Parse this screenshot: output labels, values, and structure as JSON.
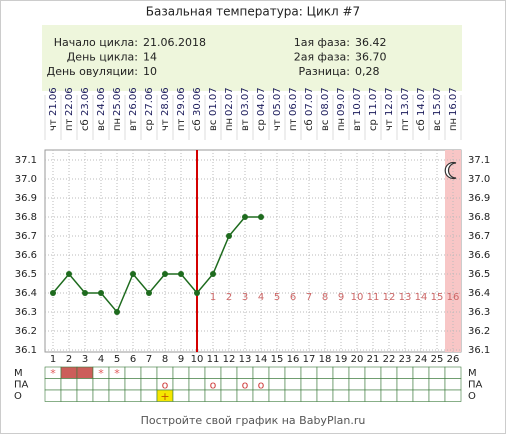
{
  "chart_data": {
    "type": "line",
    "title": "Базальная температура: Цикл #7",
    "info_left": [
      {
        "label": "Начало цикла:",
        "value": "21.06.2018"
      },
      {
        "label": "День цикла:",
        "value": "14"
      },
      {
        "label": "День овуляции:",
        "value": "10"
      }
    ],
    "info_right": [
      {
        "label": "1ая фаза:",
        "value": "36.42"
      },
      {
        "label": "2ая фаза:",
        "value": "36.70"
      },
      {
        "label": "Разница:",
        "value": "0,28"
      }
    ],
    "categories": [
      1,
      2,
      3,
      4,
      5,
      6,
      7,
      8,
      9,
      10,
      11,
      12,
      13,
      14,
      15,
      16,
      17,
      18,
      19,
      20,
      21,
      22,
      23,
      24,
      25,
      26
    ],
    "dates": [
      "21.06",
      "22.06",
      "23.06",
      "24.06",
      "25.06",
      "26.06",
      "27.06",
      "28.06",
      "29.06",
      "30.06",
      "01.07",
      "02.07",
      "03.07",
      "04.07",
      "05.07",
      "06.07",
      "07.07",
      "08.07",
      "09.07",
      "10.07",
      "11.07",
      "12.07",
      "13.07",
      "14.07",
      "15.07",
      "16.07"
    ],
    "weekdays": [
      "чт",
      "пт",
      "сб",
      "вс",
      "пн",
      "вт",
      "ср",
      "чт",
      "пт",
      "сб",
      "вс",
      "пн",
      "вт",
      "ср",
      "чт",
      "пт",
      "сб",
      "вс",
      "пн",
      "вт",
      "ср",
      "чт",
      "пт",
      "сб",
      "вс",
      "пн"
    ],
    "values": [
      36.4,
      36.5,
      36.4,
      36.4,
      36.3,
      36.5,
      36.4,
      36.5,
      36.5,
      36.4,
      36.5,
      36.7,
      36.8,
      36.8,
      null,
      null,
      null,
      null,
      null,
      null,
      null,
      null,
      null,
      null,
      null,
      null
    ],
    "color": "#1e6b1e",
    "ylim": [
      36.1,
      37.1
    ],
    "yticks": [
      37.1,
      {
        "value": 37,
        "label": "37.0"
      },
      36.9,
      36.8,
      36.7,
      36.6,
      36.5,
      36.4,
      36.3,
      36.2,
      36.1
    ],
    "grid": true,
    "ovulation_day": 10,
    "ovulation_color": "#d40000",
    "luteal_days": [
      null,
      null,
      null,
      null,
      null,
      null,
      null,
      null,
      null,
      null,
      1,
      2,
      3,
      4,
      5,
      6,
      7,
      8,
      9,
      10,
      11,
      12,
      13,
      14,
      15,
      16
    ],
    "luteal_color": "#cc6666",
    "shaded_days": [
      26
    ],
    "shade_color": "#f8c6c6",
    "rows": [
      {
        "name": "М",
        "cells": [
          "*",
          null,
          null,
          "*",
          "*",
          null,
          null,
          null,
          null,
          null,
          null,
          null,
          null,
          null,
          null,
          null,
          null,
          null,
          null,
          null,
          null,
          null,
          null,
          null,
          null,
          null
        ],
        "shaded": [
          2,
          3
        ],
        "shade_color": "#cc5e5a",
        "text_color": "#e05858"
      },
      {
        "name": "ПА",
        "cells": [
          null,
          null,
          null,
          null,
          null,
          null,
          null,
          "o",
          null,
          null,
          "o",
          null,
          "o",
          "o",
          null,
          null,
          null,
          null,
          null,
          null,
          null,
          null,
          null,
          null,
          null,
          null
        ],
        "shaded": [],
        "shade_color": "#ffffff",
        "text_color": "#d04040"
      },
      {
        "name": "О",
        "cells": [
          null,
          null,
          null,
          null,
          null,
          null,
          null,
          "+",
          null,
          null,
          null,
          null,
          null,
          null,
          null,
          null,
          null,
          null,
          null,
          null,
          null,
          null,
          null,
          null,
          null,
          null
        ],
        "shaded": [
          8
        ],
        "shade_color": "#f5e600",
        "text_color": "#c05000"
      }
    ],
    "footer": "Постройте свой график на BabyPlan.ru"
  }
}
